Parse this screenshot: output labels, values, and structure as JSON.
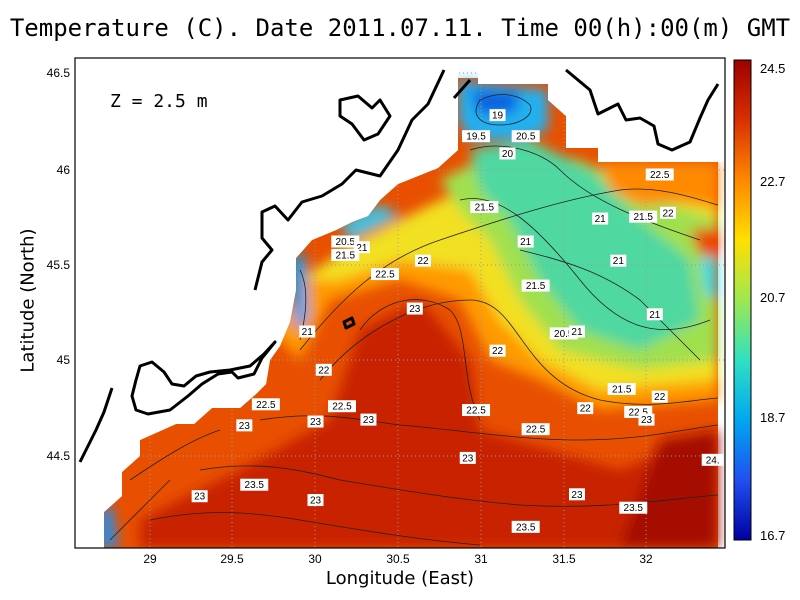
{
  "title": "Temperature (C). Date 2011.07.11. Time 00(h):00(m) GMT",
  "depth_label": "Z = 2.5 m",
  "xlabel": "Longitude (East)",
  "ylabel": "Latitude (North)",
  "x_ticks": [
    "29",
    "29.5",
    "30",
    "30.5",
    "31",
    "31.5",
    "32"
  ],
  "y_ticks": [
    "46.5",
    "46",
    "45.5",
    "45",
    "44.5"
  ],
  "colorbar": {
    "ticks": [
      "24.5",
      "22.7",
      "20.7",
      "18.7",
      "16.7"
    ],
    "colors": [
      "#9e0000",
      "#d83000",
      "#ff8800",
      "#ffe000",
      "#9ee850",
      "#30e0c0",
      "#00a8f0",
      "#2050f0",
      "#0000a0"
    ]
  },
  "grid": true,
  "contour_labels": [
    {
      "text": "19",
      "lon": 31.1,
      "lat": 46.28
    },
    {
      "text": "19.5",
      "lon": 30.97,
      "lat": 46.17
    },
    {
      "text": "20.5",
      "lon": 31.27,
      "lat": 46.17
    },
    {
      "text": "20",
      "lon": 31.16,
      "lat": 46.08
    },
    {
      "text": "22.5",
      "lon": 32.08,
      "lat": 45.97
    },
    {
      "text": "21.5",
      "lon": 31.02,
      "lat": 45.8
    },
    {
      "text": "21",
      "lon": 31.72,
      "lat": 45.74
    },
    {
      "text": "21.5",
      "lon": 31.98,
      "lat": 45.75
    },
    {
      "text": "22",
      "lon": 32.13,
      "lat": 45.77
    },
    {
      "text": "20.5",
      "lon": 30.18,
      "lat": 45.62
    },
    {
      "text": "21",
      "lon": 30.28,
      "lat": 45.59
    },
    {
      "text": "21.5",
      "lon": 30.18,
      "lat": 45.55
    },
    {
      "text": "21",
      "lon": 31.27,
      "lat": 45.62
    },
    {
      "text": "22",
      "lon": 30.65,
      "lat": 45.52
    },
    {
      "text": "21",
      "lon": 31.83,
      "lat": 45.52
    },
    {
      "text": "22.5",
      "lon": 30.42,
      "lat": 45.45
    },
    {
      "text": "21.5",
      "lon": 31.33,
      "lat": 45.39
    },
    {
      "text": "23",
      "lon": 30.6,
      "lat": 45.27
    },
    {
      "text": "21",
      "lon": 32.05,
      "lat": 45.24
    },
    {
      "text": "21",
      "lon": 29.95,
      "lat": 45.15
    },
    {
      "text": "20.5",
      "lon": 31.5,
      "lat": 45.14
    },
    {
      "text": "21",
      "lon": 31.58,
      "lat": 45.15
    },
    {
      "text": "22",
      "lon": 31.1,
      "lat": 45.05
    },
    {
      "text": "22",
      "lon": 30.05,
      "lat": 44.95
    },
    {
      "text": "21.5",
      "lon": 31.85,
      "lat": 44.85
    },
    {
      "text": "22",
      "lon": 32.08,
      "lat": 44.81
    },
    {
      "text": "22.5",
      "lon": 29.7,
      "lat": 44.77
    },
    {
      "text": "22.5",
      "lon": 30.16,
      "lat": 44.76
    },
    {
      "text": "22.5",
      "lon": 30.97,
      "lat": 44.74
    },
    {
      "text": "22",
      "lon": 31.63,
      "lat": 44.75
    },
    {
      "text": "22.5",
      "lon": 31.95,
      "lat": 44.73
    },
    {
      "text": "23",
      "lon": 32.0,
      "lat": 44.69
    },
    {
      "text": "23",
      "lon": 30.0,
      "lat": 44.68
    },
    {
      "text": "23",
      "lon": 30.32,
      "lat": 44.69
    },
    {
      "text": "23",
      "lon": 29.57,
      "lat": 44.66
    },
    {
      "text": "22.5",
      "lon": 31.33,
      "lat": 44.64
    },
    {
      "text": "23",
      "lon": 30.92,
      "lat": 44.49
    },
    {
      "text": "24.",
      "lon": 32.4,
      "lat": 44.48
    },
    {
      "text": "23.5",
      "lon": 29.63,
      "lat": 44.35
    },
    {
      "text": "23",
      "lon": 29.3,
      "lat": 44.29
    },
    {
      "text": "23",
      "lon": 30.0,
      "lat": 44.27
    },
    {
      "text": "23",
      "lon": 31.58,
      "lat": 44.3
    },
    {
      "text": "23.5",
      "lon": 31.92,
      "lat": 44.23
    },
    {
      "text": "23.5",
      "lon": 31.27,
      "lat": 44.13
    }
  ]
}
